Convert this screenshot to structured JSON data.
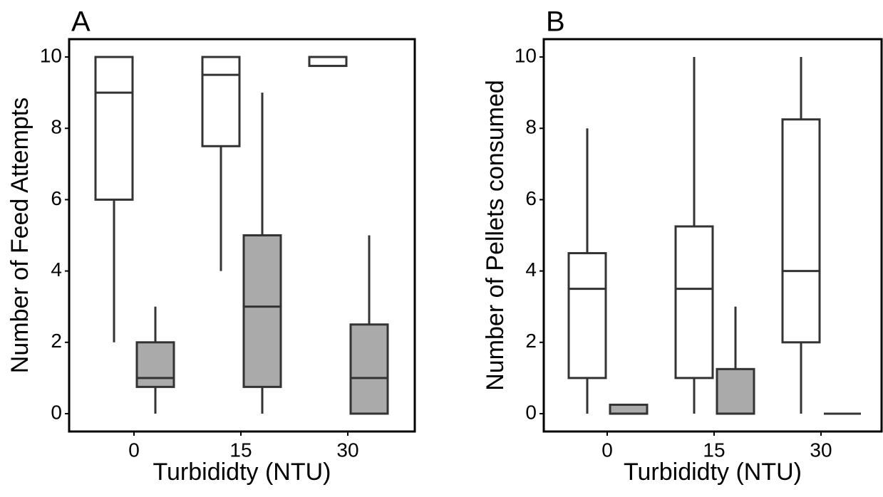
{
  "chart_data": [
    {
      "type": "box",
      "title": "A",
      "x_label": "Turbididty (NTU)",
      "y_label": "Number of Feed Attempts",
      "categories": [
        "0",
        "15",
        "30"
      ],
      "ylim": [
        -0.5,
        10.5
      ],
      "yticks": [
        0,
        2,
        4,
        6,
        8,
        10
      ],
      "series": [
        {
          "color": "#ffffff",
          "boxes": [
            {
              "min": 2,
              "q1": 6,
              "median": 9,
              "q3": 10,
              "max": 10
            },
            {
              "min": 4,
              "q1": 7.5,
              "median": 9.5,
              "q3": 10,
              "max": 10
            },
            {
              "min": 9.75,
              "q1": 9.75,
              "median": 10,
              "q3": 10,
              "max": 10
            }
          ]
        },
        {
          "color": "#aaaaaa",
          "boxes": [
            {
              "min": 0,
              "q1": 0.75,
              "median": 1,
              "q3": 2,
              "max": 3
            },
            {
              "min": 0,
              "q1": 0.75,
              "median": 3,
              "q3": 5,
              "max": 9
            },
            {
              "min": 0,
              "q1": 0,
              "median": 1,
              "q3": 2.5,
              "max": 5
            }
          ]
        }
      ]
    },
    {
      "type": "box",
      "title": "B",
      "x_label": "Turbididty (NTU)",
      "y_label": "Number of Pellets consumed",
      "categories": [
        "0",
        "15",
        "30"
      ],
      "ylim": [
        -0.5,
        10.5
      ],
      "yticks": [
        0,
        2,
        4,
        6,
        8,
        10
      ],
      "series": [
        {
          "color": "#ffffff",
          "boxes": [
            {
              "min": 0,
              "q1": 1,
              "median": 3.5,
              "q3": 4.5,
              "max": 8
            },
            {
              "min": 0,
              "q1": 1,
              "median": 3.5,
              "q3": 5.25,
              "max": 10
            },
            {
              "min": 0,
              "q1": 2,
              "median": 4,
              "q3": 8.25,
              "max": 10
            }
          ]
        },
        {
          "color": "#aaaaaa",
          "boxes": [
            {
              "min": 0,
              "q1": 0,
              "median": 0,
              "q3": 0.25,
              "max": 0.25
            },
            {
              "min": 0,
              "q1": 0,
              "median": 0,
              "q3": 1.25,
              "max": 3
            },
            {
              "min": 0,
              "q1": 0,
              "median": 0,
              "q3": 0,
              "max": 0
            }
          ]
        }
      ]
    }
  ]
}
